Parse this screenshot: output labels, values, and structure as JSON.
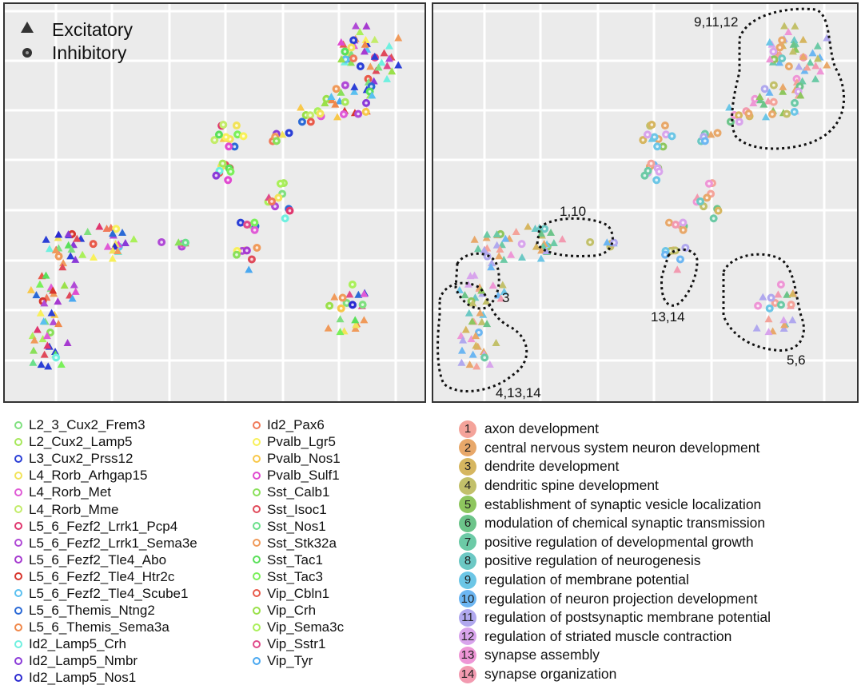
{
  "chart_data": [
    {
      "type": "scatter",
      "panel": "left",
      "title": "",
      "xlabel": "",
      "ylabel": "",
      "grid": true,
      "shape_legend": {
        "position": "top-left",
        "entries": [
          {
            "label": "Excitatory",
            "shape": "triangle"
          },
          {
            "label": "Inhibitory",
            "shape": "circle"
          }
        ]
      },
      "color_by": "cell type"
    },
    {
      "type": "scatter",
      "panel": "right",
      "grid": true,
      "color_by": "GO term",
      "annotations": [
        {
          "label": "9,11,12",
          "terms": [
            9,
            11,
            12
          ]
        },
        {
          "label": "1,10",
          "terms": [
            1,
            10
          ]
        },
        {
          "label": "3",
          "terms": [
            3
          ]
        },
        {
          "label": "13,14",
          "terms": [
            13,
            14
          ]
        },
        {
          "label": "5,6",
          "terms": [
            5,
            6
          ]
        },
        {
          "label": "4,13,14",
          "terms": [
            4,
            13,
            14
          ]
        }
      ]
    }
  ],
  "shape_legend": {
    "excitatory": "Excitatory",
    "inhibitory": "Inhibitory"
  },
  "annotations": {
    "a1": "9,11,12",
    "a2": "1,10",
    "a3": "3",
    "a4": "13,14",
    "a5": "5,6",
    "a6": "4,13,14"
  },
  "cell_types_col1": [
    {
      "label": "L2_3_Cux2_Frem3",
      "color": "#7fe07f"
    },
    {
      "label": "L2_Cux2_Lamp5",
      "color": "#a6e85a"
    },
    {
      "label": "L3_Cux2_Prss12",
      "color": "#2b3fd6"
    },
    {
      "label": "L4_Rorb_Arhgap15",
      "color": "#f2e35a"
    },
    {
      "label": "L4_Rorb_Met",
      "color": "#e05ad6"
    },
    {
      "label": "L4_Rorb_Mme",
      "color": "#c3ec6a"
    },
    {
      "label": "L5_6_Fezf2_Lrrk1_Pcp4",
      "color": "#e0366e"
    },
    {
      "label": "L5_6_Fezf2_Lrrk1_Sema3e",
      "color": "#b04ad6"
    },
    {
      "label": "L5_6_Fezf2_Tle4_Abo",
      "color": "#a63ad0"
    },
    {
      "label": "L5_6_Fezf2_Tle4_Htr2c",
      "color": "#d8362e"
    },
    {
      "label": "L5_6_Fezf2_Tle4_Scube1",
      "color": "#5ac0f0"
    },
    {
      "label": "L5_6_Themis_Ntng2",
      "color": "#2b6ad6"
    },
    {
      "label": "L5_6_Themis_Sema3a",
      "color": "#f0884a"
    },
    {
      "label": "Id2_Lamp5_Crh",
      "color": "#6ff0e0"
    },
    {
      "label": "Id2_Lamp5_Nmbr",
      "color": "#8a3ad8"
    },
    {
      "label": "Id2_Lamp5_Nos1",
      "color": "#2b2ad0"
    }
  ],
  "cell_types_col2": [
    {
      "label": "Id2_Pax6",
      "color": "#f07a5a"
    },
    {
      "label": "Pvalb_Lgr5",
      "color": "#f8f05a"
    },
    {
      "label": "Pvalb_Nos1",
      "color": "#f8c84a"
    },
    {
      "label": "Pvalb_Sulf1",
      "color": "#e04ad0"
    },
    {
      "label": "Sst_Calb1",
      "color": "#8ae05a"
    },
    {
      "label": "Sst_Isoc1",
      "color": "#e04a5a"
    },
    {
      "label": "Sst_Nos1",
      "color": "#6ae08a"
    },
    {
      "label": "Sst_Stk32a",
      "color": "#f09a5a"
    },
    {
      "label": "Sst_Tac1",
      "color": "#5ae05a"
    },
    {
      "label": "Sst_Tac3",
      "color": "#7af05a"
    },
    {
      "label": "Vip_Cbln1",
      "color": "#e85a4a"
    },
    {
      "label": "Vip_Crh",
      "color": "#9ae04a"
    },
    {
      "label": "Vip_Sema3c",
      "color": "#aaf05a"
    },
    {
      "label": "Vip_Sstr1",
      "color": "#e04a8a"
    },
    {
      "label": "Vip_Tyr",
      "color": "#4aa8f0"
    }
  ],
  "go_terms": [
    {
      "num": "1",
      "label": "axon development",
      "color": "#f4a39a"
    },
    {
      "num": "2",
      "label": "central nervous system neuron development",
      "color": "#e8a86a"
    },
    {
      "num": "3",
      "label": "dendrite development",
      "color": "#d6b660"
    },
    {
      "num": "4",
      "label": "dendritic spine development",
      "color": "#c2c06a"
    },
    {
      "num": "5",
      "label": "establishment of synaptic vesicle localization",
      "color": "#8ec65e"
    },
    {
      "num": "6",
      "label": "modulation of chemical synaptic transmission",
      "color": "#6cc48a"
    },
    {
      "num": "7",
      "label": "positive regulation of developmental growth",
      "color": "#6ccaa6"
    },
    {
      "num": "8",
      "label": "positive regulation of neurogenesis",
      "color": "#6cc8c4"
    },
    {
      "num": "9",
      "label": "regulation of membrane potential",
      "color": "#6cc6e6"
    },
    {
      "num": "10",
      "label": "regulation of neuron projection development",
      "color": "#6cb6f2"
    },
    {
      "num": "11",
      "label": "regulation of postsynaptic membrane potential",
      "color": "#b0a8ee"
    },
    {
      "num": "12",
      "label": "regulation of striated muscle contraction",
      "color": "#d8a4ec"
    },
    {
      "num": "13",
      "label": "synapse assembly",
      "color": "#ee96d6"
    },
    {
      "num": "14",
      "label": "synapse organization",
      "color": "#f29ab0"
    }
  ]
}
